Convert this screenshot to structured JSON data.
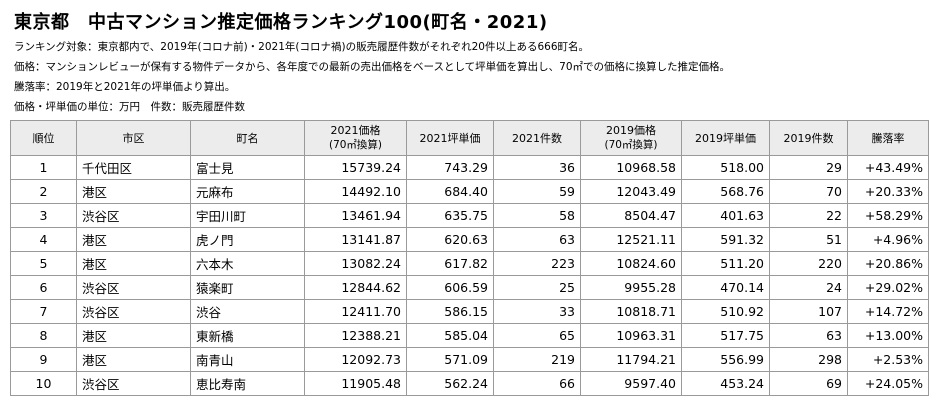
{
  "title": "東京都　中古マンション推定価格ランキング100(町名・2021)",
  "notes": [
    "ランキング対象：東京都内で、2019年(コロナ前)・2021年(コロナ禍)の販売履歴件数がそれぞれ20件以上ある666町名。",
    "価格：マンションレビューが保有する物件データから、各年度での最新の売出価格をベースとして坪単価を算出し、70㎡での価格に換算した推定価格。",
    "騰落率：2019年と2021年の坪単価より算出。",
    "価格・坪単価の単位：万円　件数：販売履歴件数"
  ],
  "table": {
    "headers": {
      "rank": "順位",
      "ward": "市区",
      "town": "町名",
      "price2021": "2021価格",
      "price2021_sub": "(70㎡換算)",
      "tsubo2021": "2021坪単価",
      "count2021": "2021件数",
      "price2019": "2019価格",
      "price2019_sub": "(70㎡換算)",
      "tsubo2019": "2019坪単価",
      "count2019": "2019件数",
      "change": "騰落率"
    },
    "rows": [
      {
        "rank": "1",
        "ward": "千代田区",
        "town": "富士見",
        "p21": "15739.24",
        "t21": "743.29",
        "c21": "36",
        "p19": "10968.58",
        "t19": "518.00",
        "c19": "29",
        "chg": "+43.49%"
      },
      {
        "rank": "2",
        "ward": "港区",
        "town": "元麻布",
        "p21": "14492.10",
        "t21": "684.40",
        "c21": "59",
        "p19": "12043.49",
        "t19": "568.76",
        "c19": "70",
        "chg": "+20.33%"
      },
      {
        "rank": "3",
        "ward": "渋谷区",
        "town": "宇田川町",
        "p21": "13461.94",
        "t21": "635.75",
        "c21": "58",
        "p19": "8504.47",
        "t19": "401.63",
        "c19": "22",
        "chg": "+58.29%"
      },
      {
        "rank": "4",
        "ward": "港区",
        "town": "虎ノ門",
        "p21": "13141.87",
        "t21": "620.63",
        "c21": "63",
        "p19": "12521.11",
        "t19": "591.32",
        "c19": "51",
        "chg": "+4.96%"
      },
      {
        "rank": "5",
        "ward": "港区",
        "town": "六本木",
        "p21": "13082.24",
        "t21": "617.82",
        "c21": "223",
        "p19": "10824.60",
        "t19": "511.20",
        "c19": "220",
        "chg": "+20.86%"
      },
      {
        "rank": "6",
        "ward": "渋谷区",
        "town": "猿楽町",
        "p21": "12844.62",
        "t21": "606.59",
        "c21": "25",
        "p19": "9955.28",
        "t19": "470.14",
        "c19": "24",
        "chg": "+29.02%"
      },
      {
        "rank": "7",
        "ward": "渋谷区",
        "town": "渋谷",
        "p21": "12411.70",
        "t21": "586.15",
        "c21": "33",
        "p19": "10818.71",
        "t19": "510.92",
        "c19": "107",
        "chg": "+14.72%"
      },
      {
        "rank": "8",
        "ward": "港区",
        "town": "東新橋",
        "p21": "12388.21",
        "t21": "585.04",
        "c21": "65",
        "p19": "10963.31",
        "t19": "517.75",
        "c19": "63",
        "chg": "+13.00%"
      },
      {
        "rank": "9",
        "ward": "港区",
        "town": "南青山",
        "p21": "12092.73",
        "t21": "571.09",
        "c21": "219",
        "p19": "11794.21",
        "t19": "556.99",
        "c19": "298",
        "chg": "+2.53%"
      },
      {
        "rank": "10",
        "ward": "渋谷区",
        "town": "恵比寿南",
        "p21": "11905.48",
        "t21": "562.24",
        "c21": "66",
        "p19": "9597.40",
        "t19": "453.24",
        "c19": "69",
        "chg": "+24.05%"
      }
    ]
  }
}
